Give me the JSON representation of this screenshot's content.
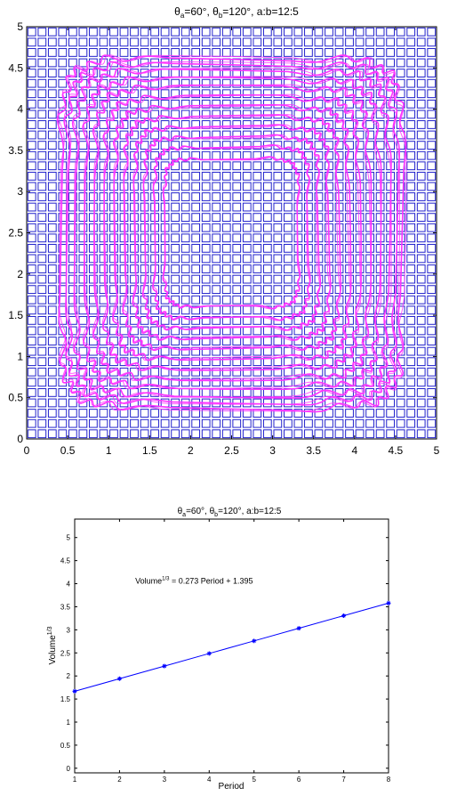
{
  "chart_data": [
    {
      "type": "scatter",
      "title": {
        "theta": "θ",
        "a_sub": "a",
        "a_val": "=60°, ",
        "b_sub": "b",
        "b_val": "=120°, a:b=12:5"
      },
      "xlim": [
        0,
        5
      ],
      "ylim": [
        0,
        5
      ],
      "xticks": [
        "0",
        "0.5",
        "1",
        "1.5",
        "2",
        "2.5",
        "3",
        "3.5",
        "4",
        "4.5",
        "5"
      ],
      "yticks": [
        "0",
        "0.5",
        "1",
        "1.5",
        "2",
        "2.5",
        "3",
        "3.5",
        "4",
        "4.5",
        "5"
      ],
      "grid": false,
      "series": [
        {
          "marker": "square",
          "color": "#2222cc",
          "grid_cells": 40,
          "range": [
            0,
            5
          ]
        },
        {
          "line": "closed-rounded-loops",
          "color": "#ff33ff",
          "loops": [
            {
              "half_width": 2.08,
              "half_height": 2.12
            },
            {
              "half_width": 2.0,
              "half_height": 2.04
            },
            {
              "half_width": 1.9,
              "half_height": 1.96
            },
            {
              "half_width": 1.78,
              "half_height": 1.86
            },
            {
              "half_width": 1.66,
              "half_height": 1.76
            },
            {
              "half_width": 1.54,
              "half_height": 1.64
            },
            {
              "half_width": 1.42,
              "half_height": 1.52
            },
            {
              "half_width": 1.3,
              "half_height": 1.4
            },
            {
              "half_width": 1.18,
              "half_height": 1.28
            },
            {
              "half_width": 1.06,
              "half_height": 1.16
            },
            {
              "half_width": 0.94,
              "half_height": 1.04
            },
            {
              "half_width": 0.82,
              "half_height": 0.9
            }
          ],
          "center": [
            2.5,
            2.5
          ]
        }
      ]
    },
    {
      "type": "line",
      "title": {
        "theta": "θ",
        "a_sub": "a",
        "a_val": "=60°, ",
        "b_sub": "b",
        "b_val": "=120°, a:b=12:5"
      },
      "xlabel": "Period",
      "ylabel": {
        "base": "Volume",
        "sup": "1/3"
      },
      "xlim": [
        1,
        8
      ],
      "ylim": [
        -0.1,
        5.4
      ],
      "xticks": [
        "1",
        "2",
        "3",
        "4",
        "5",
        "6",
        "7",
        "8"
      ],
      "yticks": [
        "0",
        "0.5",
        "1",
        "1.5",
        "2",
        "2.5",
        "3",
        "3.5",
        "4",
        "4.5",
        "5"
      ],
      "grid": false,
      "annotation": {
        "pre": "Volume",
        "sup": "1/3",
        "post": " = 0.273 Period + 1.395"
      },
      "annotation_position": [
        2.35,
        4.0
      ],
      "series": [
        {
          "color": "#0000ff",
          "marker": "asterisk",
          "x": [
            1,
            2,
            3,
            4,
            5,
            6,
            7,
            8
          ],
          "values": [
            1.668,
            1.941,
            2.214,
            2.487,
            2.76,
            3.033,
            3.306,
            3.579
          ]
        }
      ]
    }
  ]
}
